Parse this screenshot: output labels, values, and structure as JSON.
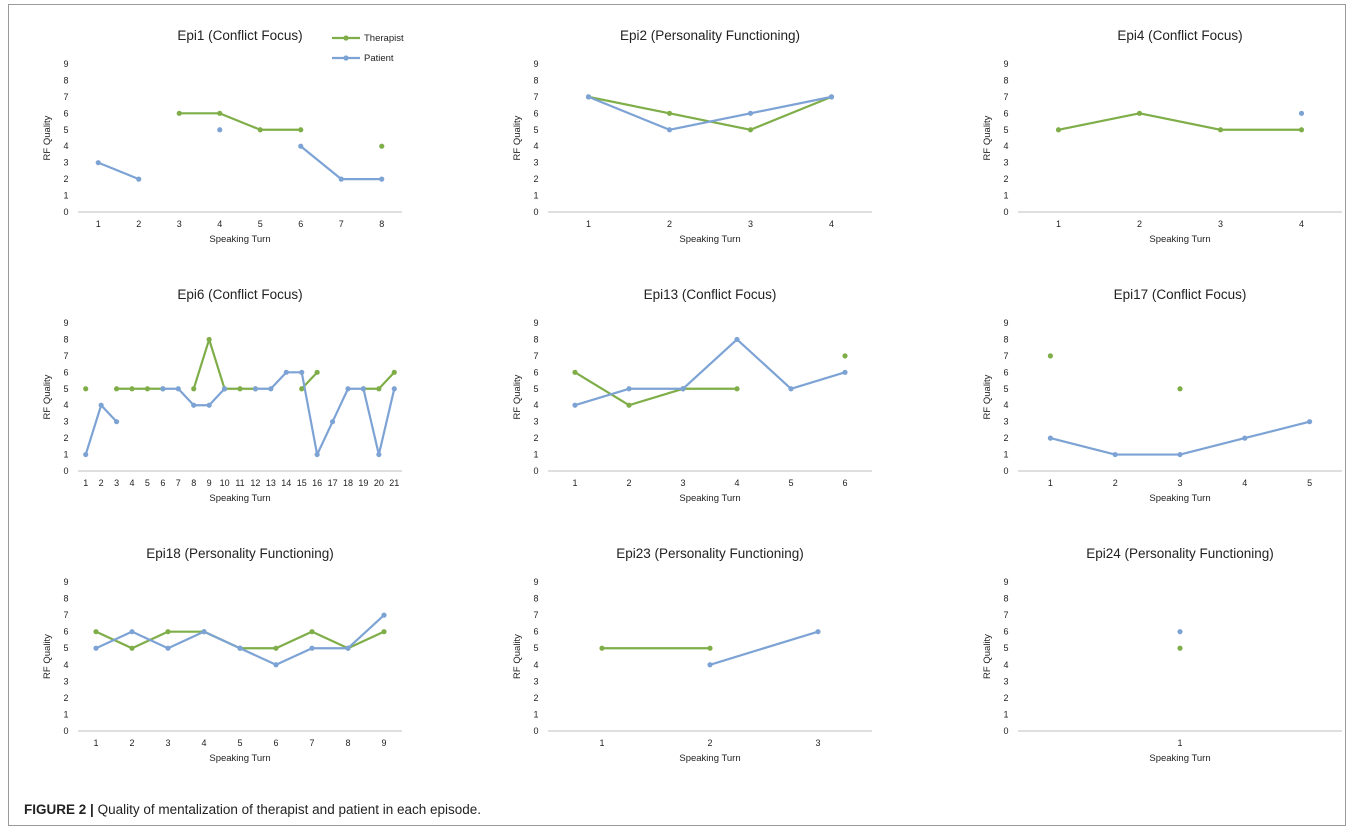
{
  "figure": {
    "caption_label": "FIGURE 2 |",
    "caption_text": "Quality of mentalization of therapist and patient in each episode."
  },
  "legend": {
    "therapist": "Therapist",
    "patient": "Patient"
  },
  "colors": {
    "therapist": "#7fae49",
    "patient": "#7da3d5",
    "axis": "#bfbfbf",
    "text": "#222222"
  },
  "chart_data": [
    {
      "type": "line",
      "title": "Epi1 (Conflict Focus)",
      "xlabel": "Speaking Turn",
      "ylabel": "RF Quality",
      "ylim": [
        0,
        9
      ],
      "x": [
        1,
        2,
        3,
        4,
        5,
        6,
        7,
        8
      ],
      "legend": true,
      "series": [
        {
          "name": "Therapist",
          "values": [
            null,
            null,
            6,
            6,
            5,
            5,
            null,
            4
          ]
        },
        {
          "name": "Patient",
          "values": [
            3,
            2,
            null,
            5,
            null,
            4,
            2,
            2
          ]
        }
      ]
    },
    {
      "type": "line",
      "title": "Epi2 (Personality Functioning)",
      "xlabel": "Speaking Turn",
      "ylabel": "RF Quality",
      "ylim": [
        0,
        9
      ],
      "x": [
        1,
        2,
        3,
        4
      ],
      "series": [
        {
          "name": "Therapist",
          "values": [
            7,
            6,
            5,
            7
          ]
        },
        {
          "name": "Patient",
          "values": [
            7,
            5,
            6,
            7
          ]
        }
      ]
    },
    {
      "type": "line",
      "title": "Epi4 (Conflict Focus)",
      "xlabel": "Speaking Turn",
      "ylabel": "RF Quality",
      "ylim": [
        0,
        9
      ],
      "x": [
        1,
        2,
        3,
        4
      ],
      "series": [
        {
          "name": "Therapist",
          "values": [
            5,
            6,
            5,
            5
          ]
        },
        {
          "name": "Patient",
          "values": [
            null,
            null,
            null,
            6
          ]
        }
      ]
    },
    {
      "type": "line",
      "title": "Epi6 (Conflict Focus)",
      "xlabel": "Speaking Turn",
      "ylabel": "RF Quality",
      "ylim": [
        0,
        9
      ],
      "x": [
        1,
        2,
        3,
        4,
        5,
        6,
        7,
        8,
        9,
        10,
        11,
        12,
        13,
        14,
        15,
        16,
        17,
        18,
        19,
        20,
        21
      ],
      "series": [
        {
          "name": "Therapist",
          "values": [
            5,
            null,
            5,
            5,
            5,
            5,
            null,
            5,
            8,
            5,
            5,
            5,
            null,
            null,
            5,
            6,
            null,
            null,
            5,
            5,
            6
          ]
        },
        {
          "name": "Patient",
          "values": [
            1,
            4,
            3,
            null,
            null,
            5,
            5,
            4,
            4,
            5,
            null,
            5,
            5,
            6,
            6,
            1,
            3,
            5,
            5,
            1,
            5
          ]
        }
      ]
    },
    {
      "type": "line",
      "title": "Epi13 (Conflict Focus)",
      "xlabel": "Speaking Turn",
      "ylabel": "RF Quality",
      "ylim": [
        0,
        9
      ],
      "x": [
        1,
        2,
        3,
        4,
        5,
        6
      ],
      "series": [
        {
          "name": "Therapist",
          "values": [
            6,
            4,
            5,
            5,
            null,
            7
          ]
        },
        {
          "name": "Patient",
          "values": [
            4,
            5,
            5,
            8,
            5,
            6
          ]
        }
      ]
    },
    {
      "type": "line",
      "title": "Epi17 (Conflict Focus)",
      "xlabel": "Speaking Turn",
      "ylabel": "RF Quality",
      "ylim": [
        0,
        9
      ],
      "x": [
        1,
        2,
        3,
        4,
        5
      ],
      "series": [
        {
          "name": "Therapist",
          "values": [
            7,
            null,
            5,
            null,
            null
          ]
        },
        {
          "name": "Patient",
          "values": [
            2,
            1,
            1,
            2,
            3
          ]
        }
      ]
    },
    {
      "type": "line",
      "title": "Epi18 (Personality Functioning)",
      "xlabel": "Speaking Turn",
      "ylabel": "RF Quality",
      "ylim": [
        0,
        9
      ],
      "x": [
        1,
        2,
        3,
        4,
        5,
        6,
        7,
        8,
        9
      ],
      "series": [
        {
          "name": "Therapist",
          "values": [
            6,
            5,
            6,
            6,
            5,
            5,
            6,
            5,
            6
          ]
        },
        {
          "name": "Patient",
          "values": [
            5,
            6,
            5,
            6,
            5,
            4,
            5,
            5,
            7
          ]
        }
      ]
    },
    {
      "type": "line",
      "title": "Epi23 (Personality Functioning)",
      "xlabel": "Speaking Turn",
      "ylabel": "RF Quality",
      "ylim": [
        0,
        9
      ],
      "x": [
        1,
        2,
        3
      ],
      "series": [
        {
          "name": "Therapist",
          "values": [
            5,
            5,
            null
          ]
        },
        {
          "name": "Patient",
          "values": [
            null,
            4,
            6
          ]
        }
      ]
    },
    {
      "type": "line",
      "title": "Epi24 (Personality Functioning)",
      "xlabel": "Speaking Turn",
      "ylabel": "RF Quality",
      "ylim": [
        0,
        9
      ],
      "x": [
        1
      ],
      "series": [
        {
          "name": "Therapist",
          "values": [
            5
          ]
        },
        {
          "name": "Patient",
          "values": [
            6
          ]
        }
      ]
    }
  ]
}
